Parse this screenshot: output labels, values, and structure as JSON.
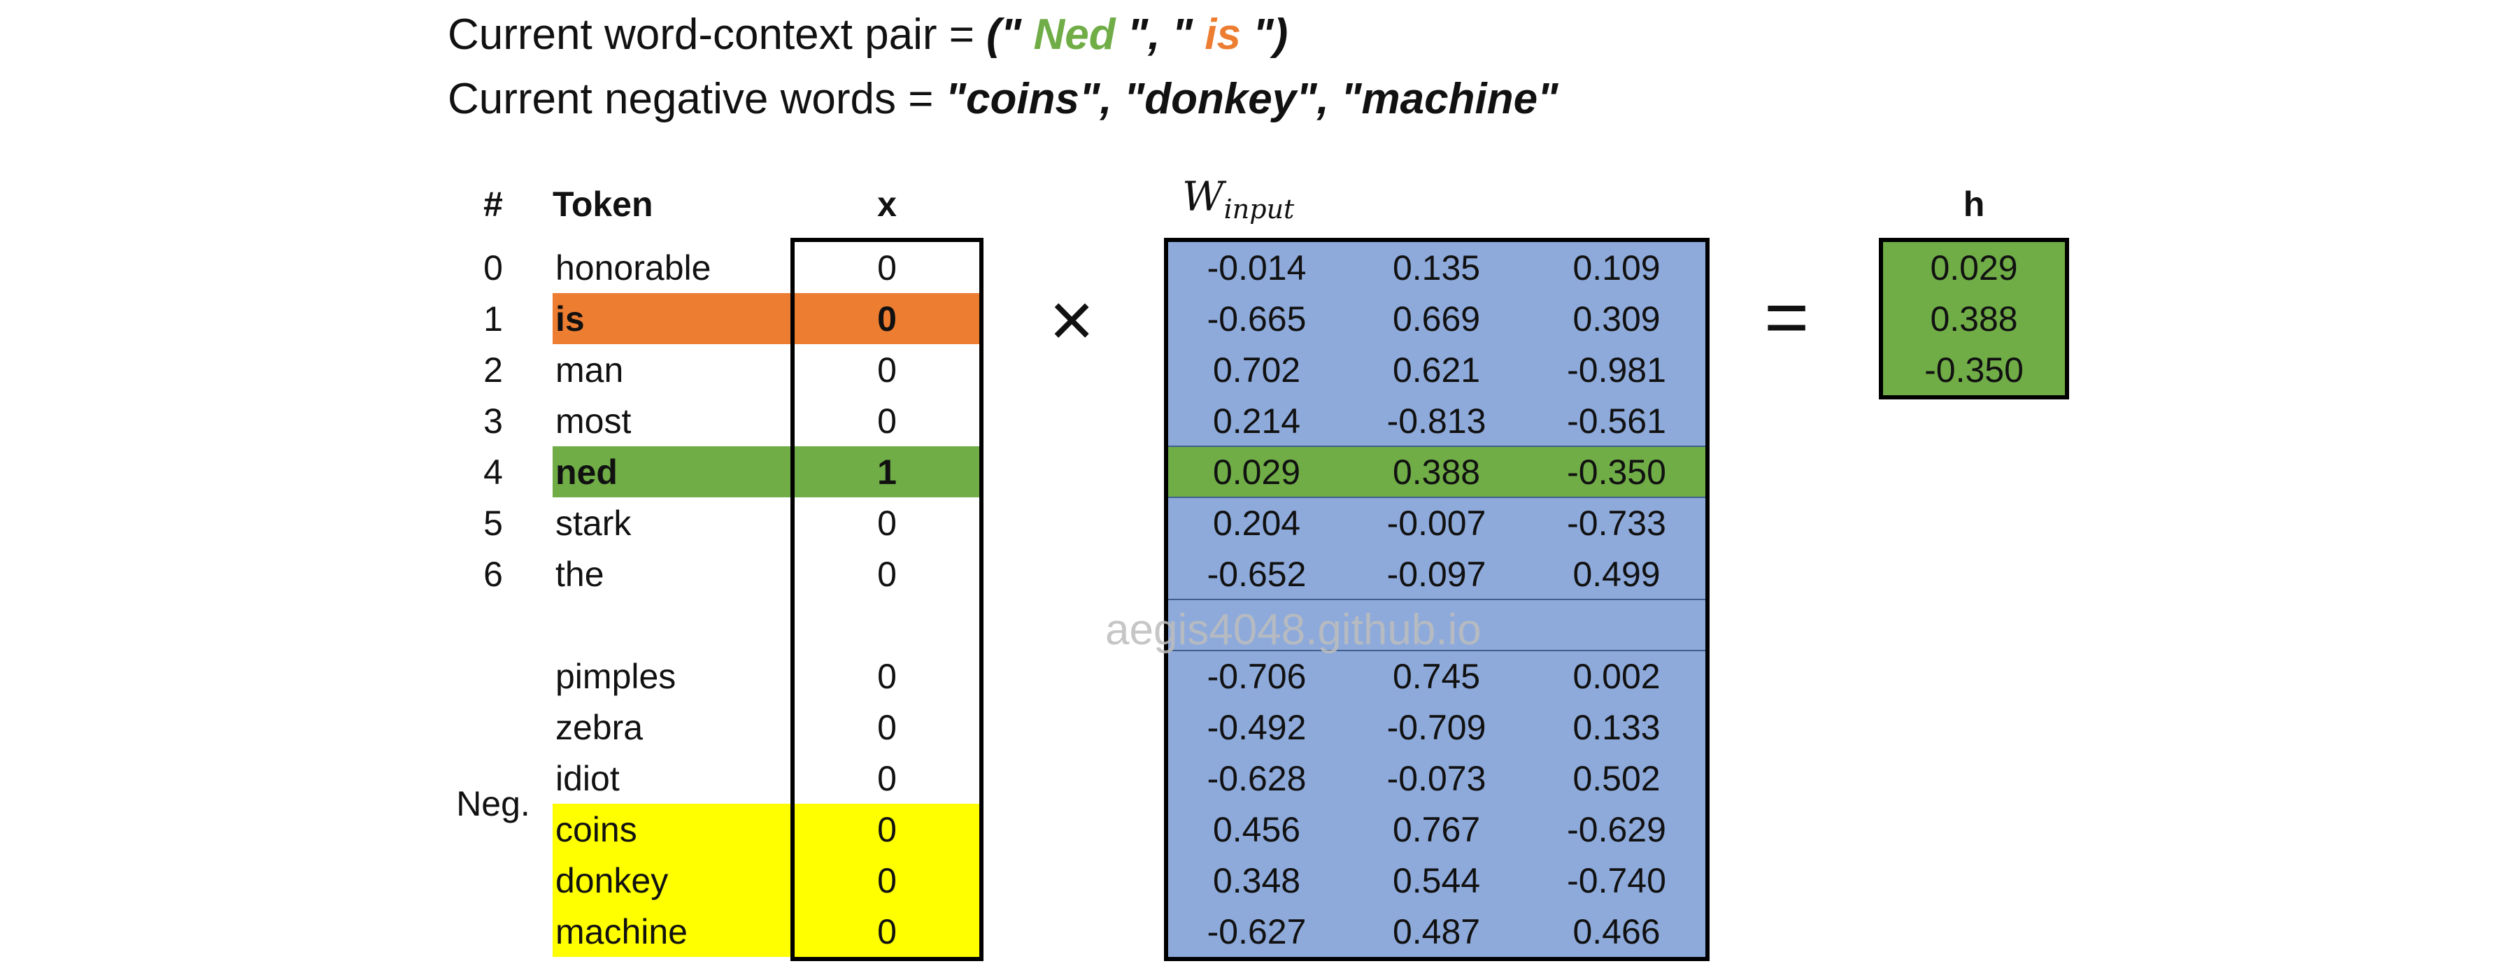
{
  "header": {
    "pair_prefix": "Current word-context pair = ",
    "pair_open": "(\" ",
    "pair_word": "Ned",
    "pair_mid": " \", \" ",
    "pair_context": "is",
    "pair_close": " \")",
    "neg_prefix": "Current negative words = ",
    "neg_words": "\"coins\", \"donkey\", \"machine\""
  },
  "columns": {
    "index": "#",
    "token": "Token",
    "x": "x",
    "w_main": "W",
    "w_sub": "input",
    "h": "h"
  },
  "operators": {
    "times": "×",
    "equals": "="
  },
  "rows": [
    {
      "index": "0",
      "token": "honorable",
      "x": "0",
      "w": [
        "-0.014",
        "0.135",
        "0.109"
      ],
      "highlight": "none"
    },
    {
      "index": "1",
      "token": "is",
      "x": "0",
      "w": [
        "-0.665",
        "0.669",
        "0.309"
      ],
      "highlight": "context"
    },
    {
      "index": "2",
      "token": "man",
      "x": "0",
      "w": [
        "0.702",
        "0.621",
        "-0.981"
      ],
      "highlight": "none"
    },
    {
      "index": "3",
      "token": "most",
      "x": "0",
      "w": [
        "0.214",
        "-0.813",
        "-0.561"
      ],
      "highlight": "none"
    },
    {
      "index": "4",
      "token": "ned",
      "x": "1",
      "w": [
        "0.029",
        "0.388",
        "-0.350"
      ],
      "highlight": "target"
    },
    {
      "index": "5",
      "token": "stark",
      "x": "0",
      "w": [
        "0.204",
        "-0.007",
        "-0.733"
      ],
      "highlight": "none"
    },
    {
      "index": "6",
      "token": "the",
      "x": "0",
      "w": [
        "-0.652",
        "-0.097",
        "0.499"
      ],
      "highlight": "none"
    },
    {
      "index": "",
      "token": "",
      "x": "",
      "w": [
        "",
        "",
        ""
      ],
      "highlight": "gap"
    },
    {
      "index": "",
      "token": "pimples",
      "x": "0",
      "w": [
        "-0.706",
        "0.745",
        "0.002"
      ],
      "highlight": "none"
    },
    {
      "index": "",
      "token": "zebra",
      "x": "0",
      "w": [
        "-0.492",
        "-0.709",
        "0.133"
      ],
      "highlight": "none"
    },
    {
      "index": "",
      "token": "idiot",
      "x": "0",
      "w": [
        "-0.628",
        "-0.073",
        "0.502"
      ],
      "highlight": "none"
    },
    {
      "index": "",
      "token": "coins",
      "x": "0",
      "w": [
        "0.456",
        "0.767",
        "-0.629"
      ],
      "highlight": "negative"
    },
    {
      "index": "",
      "token": "donkey",
      "x": "0",
      "w": [
        "0.348",
        "0.544",
        "-0.740"
      ],
      "highlight": "negative"
    },
    {
      "index": "",
      "token": "machine",
      "x": "0",
      "w": [
        "-0.627",
        "0.487",
        "0.466"
      ],
      "highlight": "negative"
    }
  ],
  "neg_label": "Neg.",
  "h_values": [
    "0.029",
    "0.388",
    "-0.350"
  ],
  "watermark": "aegis4048.github.io",
  "colors": {
    "target": "#70ad47",
    "context": "#ed7d31",
    "negative": "#ffff00",
    "matrix": "#8eaadb",
    "h_fill": "#70ad47",
    "border": "#000000"
  }
}
